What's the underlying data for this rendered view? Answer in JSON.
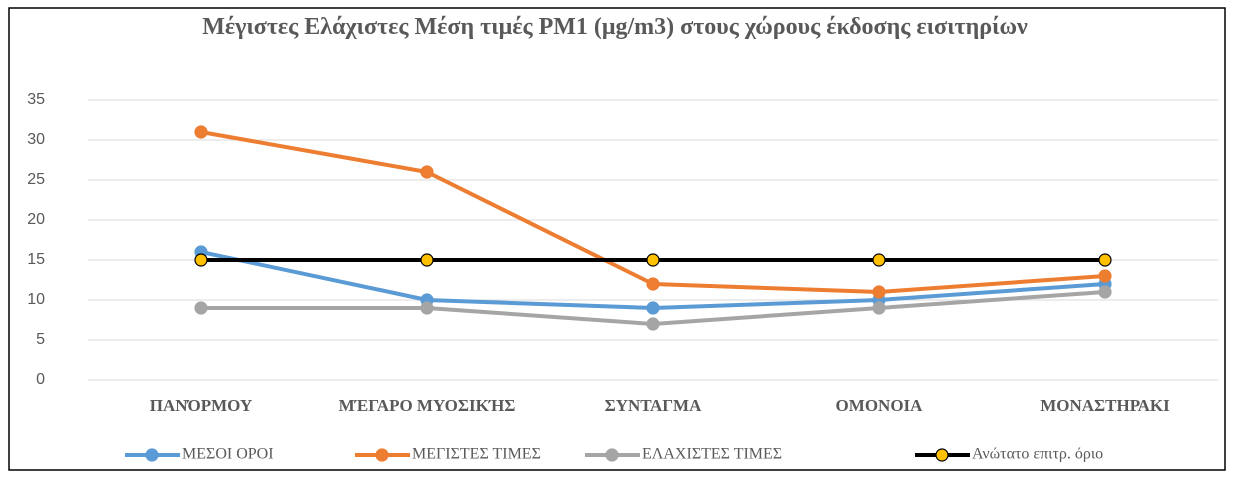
{
  "chart_data": {
    "type": "line",
    "title": "Μέγιστες  Ελάχιστες Μέση τιμές PM1  (μg/m3) στους χώρους έκδοσης  εισιτηρίων",
    "categories": [
      "ΠΑΝΌΡΜΟΥ",
      "ΜΈΓΑΡΟ ΜΥΟΣΙΚΉΣ",
      "ΣΥΝΤΑΓΜΑ",
      "ΟΜΟΝΟΙΑ",
      "ΜΟΝΑΣΤΗΡΑΚΙ"
    ],
    "series": [
      {
        "name": "ΜΕΣΟΙ ΟΡΟΙ",
        "color": "#5b9bd5",
        "values": [
          16,
          10,
          9,
          10,
          12
        ]
      },
      {
        "name": "ΜΕΓΙΣΤΕΣ ΤΙΜΕΣ",
        "color": "#ed7d31",
        "values": [
          31,
          26,
          12,
          11,
          13
        ]
      },
      {
        "name": "ΕΛΑΧΙΣΤΕΣ ΤΙΜΕΣ",
        "color": "#a5a5a5",
        "values": [
          9,
          9,
          7,
          9,
          11
        ]
      },
      {
        "name": "Ανώτατο επιτρ. όριο",
        "color": "#000000",
        "marker_color": "#ffc000",
        "values": [
          15,
          15,
          15,
          15,
          15
        ]
      }
    ],
    "ylim": [
      0,
      35
    ],
    "yticks": [
      0,
      5,
      10,
      15,
      20,
      25,
      30,
      35
    ],
    "grid": true,
    "legend": "bottom"
  }
}
